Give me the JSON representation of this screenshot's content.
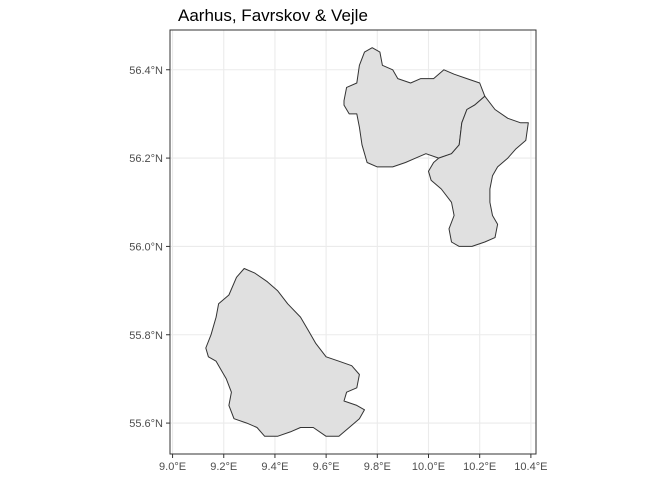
{
  "map": {
    "title": "Aarhus, Favrskov & Vejle",
    "x_ticks": [
      {
        "value": 9.0,
        "label": "9.0°E"
      },
      {
        "value": 9.2,
        "label": "9.2°E"
      },
      {
        "value": 9.4,
        "label": "9.4°E"
      },
      {
        "value": 9.6,
        "label": "9.6°E"
      },
      {
        "value": 9.8,
        "label": "9.8°E"
      },
      {
        "value": 10.0,
        "label": "10.0°E"
      },
      {
        "value": 10.2,
        "label": "10.2°E"
      },
      {
        "value": 10.4,
        "label": "10.4°E"
      }
    ],
    "y_ticks": [
      {
        "value": 55.6,
        "label": "55.6°N"
      },
      {
        "value": 55.8,
        "label": "55.8°N"
      },
      {
        "value": 56.0,
        "label": "56.0°N"
      },
      {
        "value": 56.2,
        "label": "56.2°N"
      },
      {
        "value": 56.4,
        "label": "56.4°N"
      }
    ],
    "xlim": [
      8.99,
      10.42
    ],
    "ylim": [
      55.53,
      56.49
    ],
    "grid": true,
    "fill_color": "#e0e0e0",
    "stroke_color": "#333333",
    "regions": [
      {
        "id": "favrskov",
        "outline": [
          [
            9.67,
            56.33
          ],
          [
            9.68,
            56.36
          ],
          [
            9.72,
            56.37
          ],
          [
            9.73,
            56.41
          ],
          [
            9.75,
            56.44
          ],
          [
            9.78,
            56.45
          ],
          [
            9.81,
            56.44
          ],
          [
            9.82,
            56.41
          ],
          [
            9.86,
            56.4
          ],
          [
            9.88,
            56.38
          ],
          [
            9.93,
            56.37
          ],
          [
            9.97,
            56.38
          ],
          [
            10.02,
            56.38
          ],
          [
            10.06,
            56.4
          ],
          [
            10.1,
            56.39
          ],
          [
            10.15,
            56.38
          ],
          [
            10.2,
            56.37
          ],
          [
            10.22,
            56.34
          ],
          [
            10.18,
            56.32
          ],
          [
            10.15,
            56.31
          ],
          [
            10.13,
            56.28
          ],
          [
            10.12,
            56.23
          ],
          [
            10.09,
            56.21
          ],
          [
            10.04,
            56.2
          ],
          [
            9.99,
            56.21
          ],
          [
            9.95,
            56.2
          ],
          [
            9.91,
            56.19
          ],
          [
            9.86,
            56.18
          ],
          [
            9.8,
            56.18
          ],
          [
            9.76,
            56.19
          ],
          [
            9.74,
            56.23
          ],
          [
            9.73,
            56.27
          ],
          [
            9.72,
            56.3
          ],
          [
            9.69,
            56.3
          ],
          [
            9.67,
            56.32
          ]
        ]
      },
      {
        "id": "aarhus",
        "outline": [
          [
            10.12,
            56.23
          ],
          [
            10.13,
            56.28
          ],
          [
            10.15,
            56.31
          ],
          [
            10.18,
            56.32
          ],
          [
            10.22,
            56.34
          ],
          [
            10.26,
            56.31
          ],
          [
            10.31,
            56.29
          ],
          [
            10.36,
            56.28
          ],
          [
            10.39,
            56.28
          ],
          [
            10.38,
            56.24
          ],
          [
            10.34,
            56.22
          ],
          [
            10.31,
            56.2
          ],
          [
            10.27,
            56.18
          ],
          [
            10.25,
            56.16
          ],
          [
            10.24,
            56.13
          ],
          [
            10.24,
            56.1
          ],
          [
            10.25,
            56.07
          ],
          [
            10.27,
            56.05
          ],
          [
            10.26,
            56.02
          ],
          [
            10.22,
            56.01
          ],
          [
            10.17,
            56.0
          ],
          [
            10.12,
            56.0
          ],
          [
            10.09,
            56.01
          ],
          [
            10.08,
            56.04
          ],
          [
            10.1,
            56.07
          ],
          [
            10.09,
            56.1
          ],
          [
            10.05,
            56.13
          ],
          [
            10.01,
            56.15
          ],
          [
            10.0,
            56.17
          ],
          [
            10.02,
            56.19
          ],
          [
            10.04,
            56.2
          ],
          [
            10.09,
            56.21
          ]
        ]
      },
      {
        "id": "vejle",
        "outline": [
          [
            9.13,
            55.77
          ],
          [
            9.15,
            55.8
          ],
          [
            9.17,
            55.84
          ],
          [
            9.18,
            55.87
          ],
          [
            9.22,
            55.89
          ],
          [
            9.25,
            55.93
          ],
          [
            9.28,
            55.95
          ],
          [
            9.32,
            55.94
          ],
          [
            9.37,
            55.92
          ],
          [
            9.41,
            55.9
          ],
          [
            9.45,
            55.87
          ],
          [
            9.5,
            55.84
          ],
          [
            9.53,
            55.81
          ],
          [
            9.56,
            55.78
          ],
          [
            9.6,
            55.75
          ],
          [
            9.65,
            55.74
          ],
          [
            9.7,
            55.73
          ],
          [
            9.73,
            55.71
          ],
          [
            9.72,
            55.68
          ],
          [
            9.68,
            55.67
          ],
          [
            9.67,
            55.65
          ],
          [
            9.72,
            55.64
          ],
          [
            9.75,
            55.63
          ],
          [
            9.73,
            55.61
          ],
          [
            9.69,
            55.59
          ],
          [
            9.65,
            55.57
          ],
          [
            9.6,
            55.57
          ],
          [
            9.55,
            55.59
          ],
          [
            9.5,
            55.59
          ],
          [
            9.46,
            55.58
          ],
          [
            9.41,
            55.57
          ],
          [
            9.36,
            55.57
          ],
          [
            9.33,
            55.59
          ],
          [
            9.29,
            55.6
          ],
          [
            9.24,
            55.61
          ],
          [
            9.22,
            55.64
          ],
          [
            9.23,
            55.67
          ],
          [
            9.21,
            55.7
          ],
          [
            9.19,
            55.72
          ],
          [
            9.17,
            55.74
          ],
          [
            9.14,
            55.75
          ]
        ]
      }
    ]
  }
}
